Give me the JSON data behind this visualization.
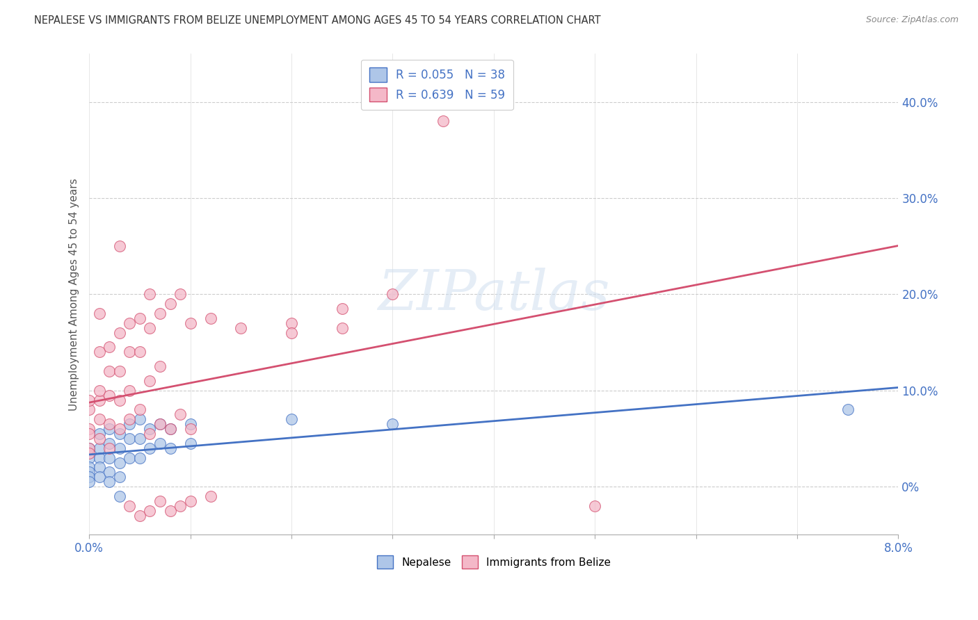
{
  "title": "NEPALESE VS IMMIGRANTS FROM BELIZE UNEMPLOYMENT AMONG AGES 45 TO 54 YEARS CORRELATION CHART",
  "source": "Source: ZipAtlas.com",
  "ylabel_label": "Unemployment Among Ages 45 to 54 years",
  "watermark": "ZIPatlas",
  "legend_labels": [
    "Nepalese",
    "Immigrants from Belize"
  ],
  "legend_R": [
    0.055,
    0.639
  ],
  "legend_N": [
    38,
    59
  ],
  "nepalese_color": "#aec6e8",
  "belize_color": "#f4b8c8",
  "nepalese_line_color": "#4472c4",
  "belize_line_color": "#d45070",
  "nepalese_scatter": [
    [
      0.0,
      0.04
    ],
    [
      0.0,
      0.03
    ],
    [
      0.0,
      0.02
    ],
    [
      0.0,
      0.015
    ],
    [
      0.0,
      0.01
    ],
    [
      0.0,
      0.005
    ],
    [
      0.001,
      0.055
    ],
    [
      0.001,
      0.04
    ],
    [
      0.001,
      0.03
    ],
    [
      0.001,
      0.02
    ],
    [
      0.001,
      0.01
    ],
    [
      0.002,
      0.06
    ],
    [
      0.002,
      0.045
    ],
    [
      0.002,
      0.03
    ],
    [
      0.002,
      0.015
    ],
    [
      0.002,
      0.005
    ],
    [
      0.003,
      0.055
    ],
    [
      0.003,
      0.04
    ],
    [
      0.003,
      0.025
    ],
    [
      0.003,
      0.01
    ],
    [
      0.004,
      0.065
    ],
    [
      0.004,
      0.05
    ],
    [
      0.004,
      0.03
    ],
    [
      0.005,
      0.07
    ],
    [
      0.005,
      0.05
    ],
    [
      0.005,
      0.03
    ],
    [
      0.006,
      0.06
    ],
    [
      0.006,
      0.04
    ],
    [
      0.007,
      0.065
    ],
    [
      0.007,
      0.045
    ],
    [
      0.008,
      0.06
    ],
    [
      0.008,
      0.04
    ],
    [
      0.01,
      0.065
    ],
    [
      0.01,
      0.045
    ],
    [
      0.02,
      0.07
    ],
    [
      0.03,
      0.065
    ],
    [
      0.075,
      0.08
    ],
    [
      0.003,
      -0.01
    ]
  ],
  "belize_scatter": [
    [
      0.0,
      0.04
    ],
    [
      0.0,
      0.06
    ],
    [
      0.0,
      0.08
    ],
    [
      0.0,
      0.09
    ],
    [
      0.0,
      0.055
    ],
    [
      0.0,
      0.035
    ],
    [
      0.001,
      0.05
    ],
    [
      0.001,
      0.07
    ],
    [
      0.001,
      0.09
    ],
    [
      0.001,
      0.1
    ],
    [
      0.001,
      0.14
    ],
    [
      0.001,
      0.18
    ],
    [
      0.002,
      0.04
    ],
    [
      0.002,
      0.065
    ],
    [
      0.002,
      0.095
    ],
    [
      0.002,
      0.12
    ],
    [
      0.002,
      0.145
    ],
    [
      0.003,
      0.06
    ],
    [
      0.003,
      0.09
    ],
    [
      0.003,
      0.12
    ],
    [
      0.003,
      0.16
    ],
    [
      0.003,
      0.25
    ],
    [
      0.004,
      0.07
    ],
    [
      0.004,
      0.1
    ],
    [
      0.004,
      0.14
    ],
    [
      0.004,
      0.17
    ],
    [
      0.005,
      0.08
    ],
    [
      0.005,
      0.14
    ],
    [
      0.005,
      0.175
    ],
    [
      0.006,
      0.055
    ],
    [
      0.006,
      0.11
    ],
    [
      0.006,
      0.165
    ],
    [
      0.006,
      0.2
    ],
    [
      0.007,
      0.065
    ],
    [
      0.007,
      0.125
    ],
    [
      0.007,
      0.18
    ],
    [
      0.008,
      0.06
    ],
    [
      0.008,
      0.19
    ],
    [
      0.009,
      0.075
    ],
    [
      0.009,
      0.2
    ],
    [
      0.01,
      0.06
    ],
    [
      0.01,
      0.17
    ],
    [
      0.012,
      0.175
    ],
    [
      0.015,
      0.165
    ],
    [
      0.02,
      0.17
    ],
    [
      0.02,
      0.16
    ],
    [
      0.025,
      0.185
    ],
    [
      0.025,
      0.165
    ],
    [
      0.03,
      0.2
    ],
    [
      0.035,
      0.38
    ],
    [
      0.004,
      -0.02
    ],
    [
      0.005,
      -0.03
    ],
    [
      0.006,
      -0.025
    ],
    [
      0.007,
      -0.015
    ],
    [
      0.008,
      -0.025
    ],
    [
      0.009,
      -0.02
    ],
    [
      0.01,
      -0.015
    ],
    [
      0.012,
      -0.01
    ],
    [
      0.05,
      -0.02
    ]
  ],
  "xmin": 0.0,
  "xmax": 0.08,
  "ymin": -0.05,
  "ymax": 0.45,
  "yticks": [
    0.0,
    0.1,
    0.2,
    0.3,
    0.4
  ],
  "ytick_labels": [
    "0%",
    "10.0%",
    "20.0%",
    "30.0%",
    "40.0%"
  ],
  "xticks": [
    0.0,
    0.01,
    0.02,
    0.03,
    0.04,
    0.05,
    0.06,
    0.07,
    0.08
  ],
  "background_color": "#ffffff",
  "grid_color": "#cccccc",
  "title_color": "#333333",
  "axis_label_color": "#555555"
}
